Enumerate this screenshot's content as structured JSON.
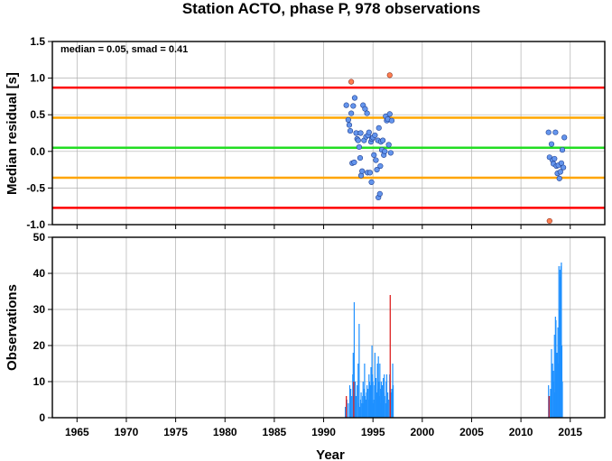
{
  "title": "Station ACTO, phase P, 978 observations",
  "chart_data": [
    {
      "type": "scatter",
      "ylabel": "Median residual [s]",
      "annotation": "median = 0.05, smad = 0.41",
      "xlim": [
        1962.5,
        2018.5
      ],
      "ylim": [
        -1.0,
        1.5
      ],
      "grid": true,
      "yticks": [
        "1.5",
        "1.0",
        "0.5",
        "0.0",
        "-0.5",
        "-1.0"
      ],
      "yticks_values": [
        1.5,
        1.0,
        0.5,
        0.0,
        -0.5,
        -1.0
      ],
      "hlines": [
        {
          "y": 0.05,
          "color": "#22dd22"
        },
        {
          "y": 0.46,
          "color": "#ffa500"
        },
        {
          "y": -0.36,
          "color": "#ffa500"
        },
        {
          "y": 0.87,
          "color": "#ff0000"
        },
        {
          "y": -0.77,
          "color": "#ff0000"
        }
      ],
      "points": [
        [
          1992.3,
          0.63
        ],
        [
          1992.5,
          0.43
        ],
        [
          1992.6,
          0.36
        ],
        [
          1992.7,
          0.28
        ],
        [
          1992.8,
          0.52
        ],
        [
          1992.9,
          -0.16
        ],
        [
          1993.0,
          0.62
        ],
        [
          1993.1,
          -0.15
        ],
        [
          1993.15,
          0.73
        ],
        [
          1993.3,
          0.25
        ],
        [
          1993.4,
          0.17
        ],
        [
          1993.5,
          0.15
        ],
        [
          1993.6,
          0.06
        ],
        [
          1993.7,
          -0.09
        ],
        [
          1993.75,
          0.25
        ],
        [
          1993.8,
          -0.33
        ],
        [
          1993.9,
          -0.27
        ],
        [
          1994.0,
          0.63
        ],
        [
          1994.1,
          0.15
        ],
        [
          1994.2,
          0.58
        ],
        [
          1994.3,
          0.2
        ],
        [
          1994.4,
          0.52
        ],
        [
          1994.45,
          -0.29
        ],
        [
          1994.5,
          0.22
        ],
        [
          1994.6,
          0.26
        ],
        [
          1994.7,
          -0.29
        ],
        [
          1994.8,
          0.13
        ],
        [
          1994.85,
          -0.42
        ],
        [
          1994.9,
          0.17
        ],
        [
          1995.0,
          0.19
        ],
        [
          1995.1,
          -0.05
        ],
        [
          1995.2,
          0.22
        ],
        [
          1995.3,
          -0.12
        ],
        [
          1995.4,
          -0.25
        ],
        [
          1995.5,
          0.15
        ],
        [
          1995.55,
          -0.63
        ],
        [
          1995.6,
          0.32
        ],
        [
          1995.7,
          -0.58
        ],
        [
          1995.75,
          -0.2
        ],
        [
          1995.8,
          0.13
        ],
        [
          1995.9,
          0.02
        ],
        [
          1996.0,
          0.15
        ],
        [
          1996.1,
          -0.05
        ],
        [
          1996.2,
          0.0
        ],
        [
          1996.3,
          0.48
        ],
        [
          1996.4,
          0.42
        ],
        [
          1996.5,
          0.44
        ],
        [
          1996.6,
          0.09
        ],
        [
          1996.7,
          0.51
        ],
        [
          1996.8,
          -0.02
        ],
        [
          1996.9,
          0.42
        ],
        [
          2012.8,
          0.26
        ],
        [
          2012.9,
          -0.08
        ],
        [
          2013.1,
          0.1
        ],
        [
          2013.2,
          -0.12
        ],
        [
          2013.3,
          -0.17
        ],
        [
          2013.4,
          -0.1
        ],
        [
          2013.5,
          0.26
        ],
        [
          2013.6,
          -0.2
        ],
        [
          2013.7,
          -0.3
        ],
        [
          2013.8,
          -0.19
        ],
        [
          2013.9,
          -0.37
        ],
        [
          2014.0,
          -0.28
        ],
        [
          2014.1,
          -0.16
        ],
        [
          2014.2,
          0.02
        ],
        [
          2014.3,
          -0.22
        ],
        [
          2014.4,
          0.19
        ]
      ],
      "outliers": [
        [
          1992.8,
          0.95
        ],
        [
          1996.7,
          1.04
        ],
        [
          2012.9,
          -0.95
        ]
      ],
      "point_color": "#6495ed",
      "outlier_color": "#ff7f50"
    },
    {
      "type": "bar",
      "xlabel": "Year",
      "ylabel": "Observations",
      "xlim": [
        1962.5,
        2018.5
      ],
      "ylim": [
        0,
        50
      ],
      "grid": true,
      "xticks": [
        "1965",
        "1970",
        "1975",
        "1980",
        "1985",
        "1990",
        "1995",
        "2000",
        "2005",
        "2010",
        "2015"
      ],
      "xticks_values": [
        1965,
        1970,
        1975,
        1980,
        1985,
        1990,
        1995,
        2000,
        2005,
        2010,
        2015
      ],
      "yticks": [
        "50",
        "40",
        "30",
        "20",
        "10",
        "0"
      ],
      "yticks_values": [
        50,
        40,
        30,
        20,
        10,
        0
      ],
      "bar_color": "#1e90ff",
      "highlight_color": "#dd2222",
      "bars": [
        [
          1992.2,
          3
        ],
        [
          1992.35,
          5
        ],
        [
          1992.5,
          4
        ],
        [
          1992.65,
          9
        ],
        [
          1992.75,
          8
        ],
        [
          1992.85,
          6
        ],
        [
          1992.95,
          12
        ],
        [
          1993.0,
          18
        ],
        [
          1993.1,
          32
        ],
        [
          1993.2,
          10
        ],
        [
          1993.3,
          6
        ],
        [
          1993.4,
          9
        ],
        [
          1993.5,
          15
        ],
        [
          1993.55,
          4
        ],
        [
          1993.6,
          26
        ],
        [
          1993.7,
          3
        ],
        [
          1993.75,
          5
        ],
        [
          1993.8,
          7
        ],
        [
          1993.9,
          4
        ],
        [
          1993.95,
          6
        ],
        [
          1994.0,
          10
        ],
        [
          1994.05,
          4
        ],
        [
          1994.1,
          8
        ],
        [
          1994.15,
          15
        ],
        [
          1994.2,
          6
        ],
        [
          1994.3,
          5
        ],
        [
          1994.35,
          7
        ],
        [
          1994.4,
          9
        ],
        [
          1994.5,
          8
        ],
        [
          1994.55,
          5
        ],
        [
          1994.6,
          12
        ],
        [
          1994.65,
          10
        ],
        [
          1994.7,
          9
        ],
        [
          1994.75,
          5
        ],
        [
          1994.8,
          14
        ],
        [
          1994.85,
          8
        ],
        [
          1994.9,
          20
        ],
        [
          1994.95,
          12
        ],
        [
          1995.0,
          10
        ],
        [
          1995.05,
          4
        ],
        [
          1995.1,
          5
        ],
        [
          1995.15,
          9
        ],
        [
          1995.2,
          18
        ],
        [
          1995.3,
          11
        ],
        [
          1995.35,
          7
        ],
        [
          1995.4,
          6
        ],
        [
          1995.45,
          15
        ],
        [
          1995.5,
          8
        ],
        [
          1995.55,
          17
        ],
        [
          1995.6,
          10
        ],
        [
          1995.65,
          6
        ],
        [
          1995.7,
          15
        ],
        [
          1995.75,
          8
        ],
        [
          1995.8,
          4
        ],
        [
          1995.85,
          10
        ],
        [
          1995.9,
          7
        ],
        [
          1995.95,
          9
        ],
        [
          1996.0,
          5
        ],
        [
          1996.05,
          11
        ],
        [
          1996.1,
          7
        ],
        [
          1996.15,
          12
        ],
        [
          1996.2,
          6
        ],
        [
          1996.3,
          4
        ],
        [
          1996.35,
          10
        ],
        [
          1996.4,
          12
        ],
        [
          1996.5,
          7
        ],
        [
          1996.6,
          5
        ],
        [
          1996.7,
          12
        ],
        [
          1996.8,
          7
        ],
        [
          1996.9,
          8
        ],
        [
          1997.0,
          15
        ],
        [
          1997.05,
          9
        ],
        [
          2012.8,
          9
        ],
        [
          2012.9,
          6
        ],
        [
          2013.0,
          8
        ],
        [
          2013.1,
          19
        ],
        [
          2013.2,
          15
        ],
        [
          2013.3,
          13
        ],
        [
          2013.35,
          10
        ],
        [
          2013.4,
          23
        ],
        [
          2013.45,
          7
        ],
        [
          2013.5,
          28
        ],
        [
          2013.55,
          27
        ],
        [
          2013.6,
          12
        ],
        [
          2013.65,
          18
        ],
        [
          2013.7,
          12
        ],
        [
          2013.75,
          25
        ],
        [
          2013.8,
          15
        ],
        [
          2013.85,
          42
        ],
        [
          2013.9,
          30
        ],
        [
          2013.95,
          41
        ],
        [
          2014.0,
          39
        ],
        [
          2014.05,
          42
        ],
        [
          2014.1,
          43
        ],
        [
          2014.15,
          20
        ],
        [
          2014.2,
          10
        ]
      ],
      "highlight_bars": [
        [
          1992.3,
          6
        ],
        [
          1993.05,
          10
        ],
        [
          1996.75,
          34
        ],
        [
          2012.85,
          6
        ]
      ]
    }
  ]
}
